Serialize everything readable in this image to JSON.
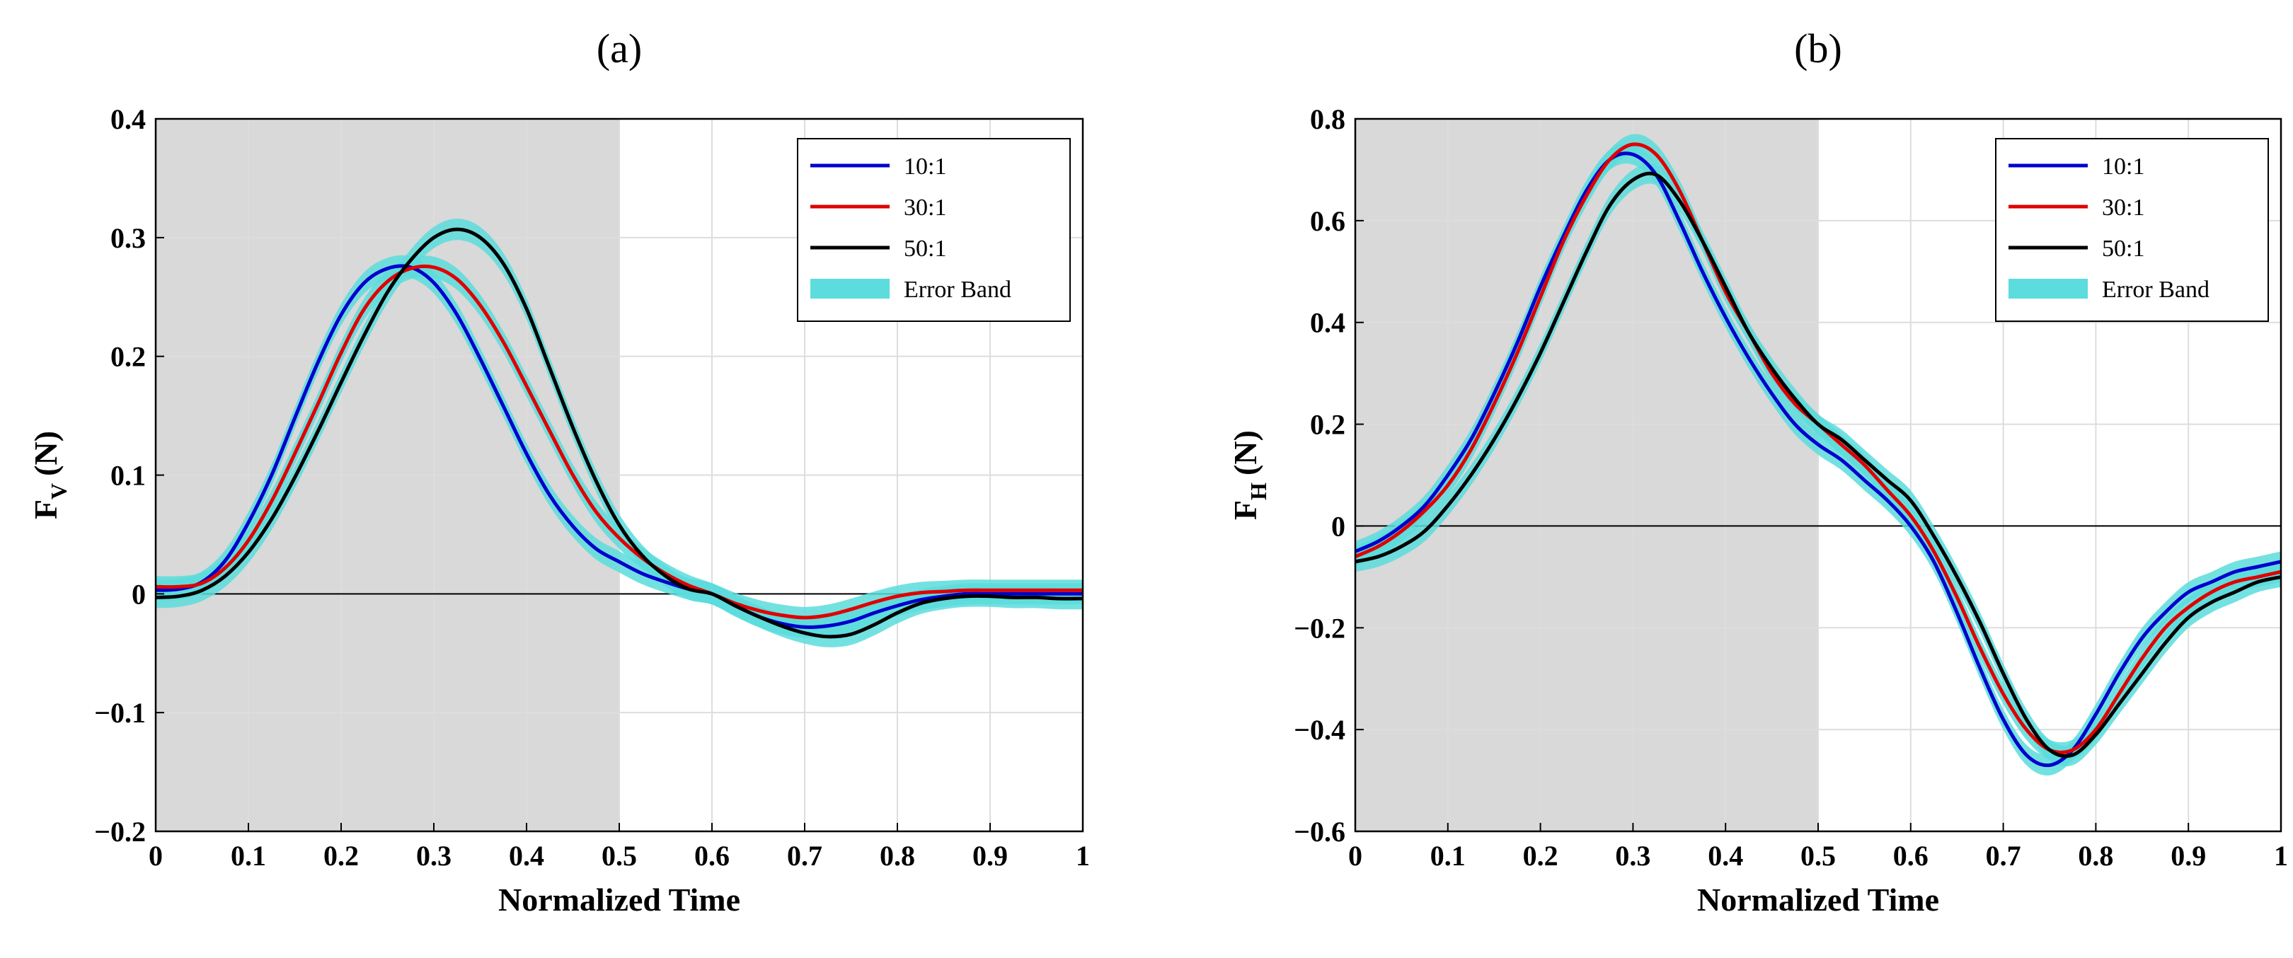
{
  "colors": {
    "series_10": "#0000cc",
    "series_30": "#e00000",
    "series_50": "#000000",
    "error_band": "#5cdcdc",
    "shade": "#d9d9d9",
    "grid": "#dddddd"
  },
  "chart_data": [
    {
      "type": "line",
      "title": "(a)",
      "xlabel": "Normalized Time",
      "ylabel_main": "F",
      "ylabel_sub": "V",
      "ylabel_unit": "(N)",
      "xlim": [
        0,
        1
      ],
      "ylim": [
        -0.2,
        0.4
      ],
      "xticks": [
        0,
        0.1,
        0.2,
        0.3,
        0.4,
        0.5,
        0.6,
        0.7,
        0.8,
        0.9,
        1
      ],
      "xtick_labels": [
        "0",
        "0.1",
        "0.2",
        "0.3",
        "0.4",
        "0.5",
        "0.6",
        "0.7",
        "0.8",
        "0.9",
        "1"
      ],
      "yticks": [
        -0.2,
        -0.1,
        0,
        0.1,
        0.2,
        0.3,
        0.4
      ],
      "ytick_labels": [
        "−0.2",
        "−0.1",
        "0",
        "0.1",
        "0.2",
        "0.3",
        "0.4"
      ],
      "shaded_x": [
        0,
        0.5
      ],
      "zero_line": true,
      "legend_position": "top-right",
      "legend": [
        "10:1",
        "30:1",
        "50:1",
        "Error Band"
      ],
      "band_halfwidth": 0.009,
      "x": [
        0,
        0.025,
        0.05,
        0.075,
        0.1,
        0.125,
        0.15,
        0.175,
        0.2,
        0.225,
        0.25,
        0.275,
        0.3,
        0.325,
        0.35,
        0.375,
        0.4,
        0.425,
        0.45,
        0.475,
        0.5,
        0.525,
        0.55,
        0.575,
        0.6,
        0.625,
        0.65,
        0.675,
        0.7,
        0.725,
        0.75,
        0.775,
        0.8,
        0.825,
        0.85,
        0.875,
        0.9,
        0.925,
        0.95,
        0.975,
        1
      ],
      "series": [
        {
          "name": "10:1",
          "color_key": "series_10",
          "values": [
            0.003,
            0.004,
            0.01,
            0.028,
            0.06,
            0.1,
            0.148,
            0.195,
            0.235,
            0.262,
            0.274,
            0.275,
            0.262,
            0.235,
            0.198,
            0.158,
            0.118,
            0.083,
            0.057,
            0.038,
            0.027,
            0.017,
            0.01,
            0.004,
            0.0,
            -0.01,
            -0.019,
            -0.025,
            -0.028,
            -0.027,
            -0.023,
            -0.016,
            -0.01,
            -0.005,
            -0.002,
            0.0,
            0.0,
            0.0,
            0.0,
            0.0,
            0.0
          ]
        },
        {
          "name": "30:1",
          "color_key": "series_30",
          "values": [
            0.006,
            0.006,
            0.009,
            0.022,
            0.045,
            0.078,
            0.118,
            0.16,
            0.203,
            0.24,
            0.263,
            0.274,
            0.275,
            0.265,
            0.243,
            0.212,
            0.175,
            0.137,
            0.1,
            0.069,
            0.047,
            0.03,
            0.017,
            0.007,
            0.0,
            -0.008,
            -0.014,
            -0.018,
            -0.02,
            -0.018,
            -0.013,
            -0.007,
            -0.002,
            0.001,
            0.002,
            0.003,
            0.003,
            0.003,
            0.003,
            0.003,
            0.003
          ]
        },
        {
          "name": "50:1",
          "color_key": "series_50",
          "values": [
            -0.003,
            -0.002,
            0.003,
            0.015,
            0.035,
            0.063,
            0.098,
            0.137,
            0.178,
            0.218,
            0.254,
            0.281,
            0.3,
            0.307,
            0.3,
            0.278,
            0.24,
            0.19,
            0.14,
            0.095,
            0.058,
            0.032,
            0.015,
            0.004,
            0.0,
            -0.01,
            -0.019,
            -0.027,
            -0.033,
            -0.036,
            -0.034,
            -0.026,
            -0.016,
            -0.008,
            -0.004,
            -0.002,
            -0.002,
            -0.003,
            -0.003,
            -0.004,
            -0.004
          ]
        }
      ]
    },
    {
      "type": "line",
      "title": "(b)",
      "xlabel": "Normalized Time",
      "ylabel_main": "F",
      "ylabel_sub": "H",
      "ylabel_unit": "(N)",
      "xlim": [
        0,
        1
      ],
      "ylim": [
        -0.6,
        0.8
      ],
      "xticks": [
        0,
        0.1,
        0.2,
        0.3,
        0.4,
        0.5,
        0.6,
        0.7,
        0.8,
        0.9,
        1
      ],
      "xtick_labels": [
        "0",
        "0.1",
        "0.2",
        "0.3",
        "0.4",
        "0.5",
        "0.6",
        "0.7",
        "0.8",
        "0.9",
        "1"
      ],
      "yticks": [
        -0.6,
        -0.4,
        -0.2,
        0,
        0.2,
        0.4,
        0.6,
        0.8
      ],
      "ytick_labels": [
        "−0.6",
        "−0.4",
        "−0.2",
        "0",
        "0.2",
        "0.4",
        "0.6",
        "0.8"
      ],
      "shaded_x": [
        0,
        0.5
      ],
      "zero_line": true,
      "legend_position": "top-right",
      "legend": [
        "10:1",
        "30:1",
        "50:1",
        "Error Band"
      ],
      "band_halfwidth": 0.02,
      "x": [
        0,
        0.025,
        0.05,
        0.075,
        0.1,
        0.125,
        0.15,
        0.175,
        0.2,
        0.225,
        0.25,
        0.275,
        0.3,
        0.325,
        0.35,
        0.375,
        0.4,
        0.425,
        0.45,
        0.475,
        0.5,
        0.525,
        0.55,
        0.575,
        0.6,
        0.625,
        0.65,
        0.675,
        0.7,
        0.725,
        0.75,
        0.775,
        0.8,
        0.825,
        0.85,
        0.875,
        0.9,
        0.925,
        0.95,
        0.975,
        1
      ],
      "series": [
        {
          "name": "10:1",
          "color_key": "series_10",
          "values": [
            -0.05,
            -0.03,
            0.0,
            0.04,
            0.1,
            0.17,
            0.26,
            0.36,
            0.47,
            0.57,
            0.66,
            0.72,
            0.73,
            0.69,
            0.6,
            0.5,
            0.41,
            0.33,
            0.26,
            0.2,
            0.16,
            0.13,
            0.09,
            0.05,
            0.0,
            -0.07,
            -0.17,
            -0.28,
            -0.38,
            -0.45,
            -0.47,
            -0.44,
            -0.37,
            -0.29,
            -0.22,
            -0.17,
            -0.13,
            -0.11,
            -0.09,
            -0.08,
            -0.07
          ]
        },
        {
          "name": "30:1",
          "color_key": "series_30",
          "values": [
            -0.06,
            -0.04,
            -0.01,
            0.03,
            0.08,
            0.15,
            0.24,
            0.34,
            0.45,
            0.56,
            0.65,
            0.72,
            0.75,
            0.73,
            0.66,
            0.56,
            0.46,
            0.38,
            0.3,
            0.24,
            0.2,
            0.16,
            0.12,
            0.07,
            0.02,
            -0.05,
            -0.14,
            -0.24,
            -0.33,
            -0.4,
            -0.44,
            -0.44,
            -0.4,
            -0.33,
            -0.26,
            -0.2,
            -0.16,
            -0.13,
            -0.11,
            -0.1,
            -0.09
          ]
        },
        {
          "name": "50:1",
          "color_key": "series_50",
          "values": [
            -0.07,
            -0.06,
            -0.04,
            -0.01,
            0.04,
            0.1,
            0.17,
            0.25,
            0.34,
            0.44,
            0.54,
            0.63,
            0.68,
            0.69,
            0.64,
            0.56,
            0.47,
            0.38,
            0.31,
            0.25,
            0.2,
            0.17,
            0.13,
            0.09,
            0.05,
            -0.02,
            -0.1,
            -0.19,
            -0.29,
            -0.38,
            -0.44,
            -0.45,
            -0.41,
            -0.35,
            -0.29,
            -0.23,
            -0.18,
            -0.15,
            -0.13,
            -0.11,
            -0.1
          ]
        }
      ]
    }
  ]
}
